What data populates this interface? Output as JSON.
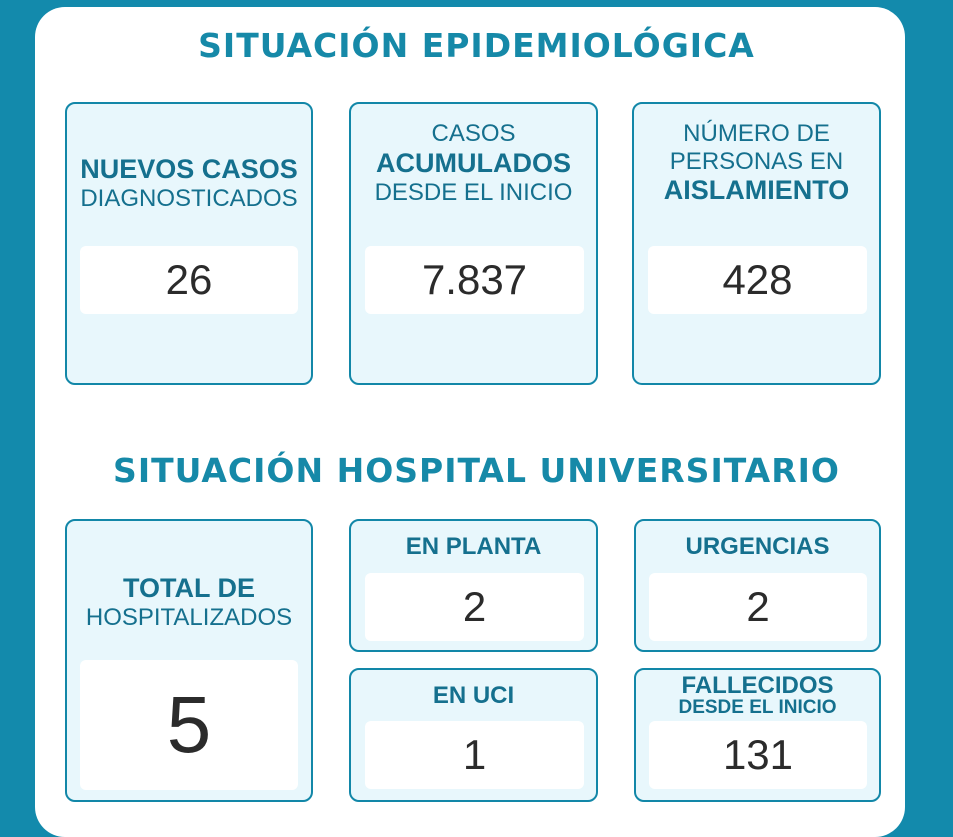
{
  "epidemiologica": {
    "title": "SITUACIÓN EPIDEMIOLÓGICA",
    "nuevos": {
      "l1": "NUEVOS CASOS",
      "l2": "DIAGNOSTICADOS",
      "value": "26"
    },
    "acumulados": {
      "l1": "CASOS",
      "l2": "ACUMULADOS",
      "l3": "DESDE EL INICIO",
      "value": "7.837"
    },
    "aislamiento": {
      "l1": "NÚMERO DE",
      "l2": "PERSONAS EN",
      "l3": "AISLAMIENTO",
      "value": "428"
    }
  },
  "hospital": {
    "title": "SITUACIÓN HOSPITAL UNIVERSITARIO",
    "total": {
      "l1": "TOTAL DE",
      "l2": "HOSPITALIZADOS",
      "value": "5"
    },
    "planta": {
      "label": "EN PLANTA",
      "value": "2"
    },
    "urgencias": {
      "label": "URGENCIAS",
      "value": "2"
    },
    "uci": {
      "label": "EN UCI",
      "value": "1"
    },
    "fallecidos": {
      "l1": "FALLECIDOS",
      "l2": "DESDE EL INICIO",
      "value": "131"
    }
  },
  "colors": {
    "background": "#138aac",
    "border": "#1287a8",
    "card_fill": "#e8f7fc",
    "label_text": "#15708e",
    "title_text": "#1689a8"
  }
}
